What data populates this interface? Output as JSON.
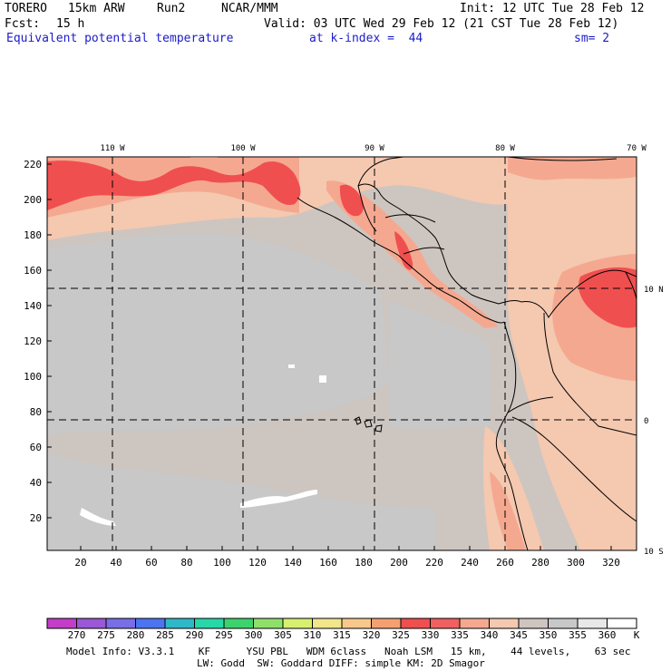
{
  "header": {
    "model": "TORERO",
    "resolution": "15km ARW",
    "run": "Run2",
    "org": "NCAR/MMM",
    "init": "Init: 12 UTC Tue 28 Feb 12",
    "fcst_label": "Fcst:",
    "fcst_value": "15 h",
    "valid": "Valid: 03 UTC Wed 29 Feb 12 (21 CST Tue 28 Feb 12)",
    "field": "Equivalent potential temperature",
    "level": "at k-index =  44",
    "smoothing": "sm= 2"
  },
  "map": {
    "lon_labels": [
      "110 W",
      "100 W",
      "90 W",
      "80 W",
      "70 W"
    ],
    "lat_labels": [
      "10 N",
      "0",
      "10 S"
    ],
    "y_ticks": [
      "220",
      "200",
      "180",
      "160",
      "140",
      "120",
      "100",
      "80",
      "60",
      "40",
      "20"
    ],
    "x_ticks": [
      "20",
      "40",
      "60",
      "80",
      "100",
      "120",
      "140",
      "160",
      "180",
      "200",
      "220",
      "240",
      "260",
      "280",
      "300",
      "320"
    ]
  },
  "colorbar": {
    "levels": [
      "270",
      "275",
      "280",
      "285",
      "290",
      "295",
      "300",
      "305",
      "310",
      "315",
      "320",
      "325",
      "330",
      "335",
      "340",
      "345",
      "350",
      "355",
      "360"
    ],
    "unit": "K",
    "colors": [
      "#c23ec8",
      "#9b57d6",
      "#7a6ee6",
      "#4d74f0",
      "#2fb8c8",
      "#27d7a8",
      "#3cd26e",
      "#8fe06a",
      "#d7f070",
      "#f0e68a",
      "#f7c88c",
      "#f5a070",
      "#f04f4f",
      "#f06060",
      "#f5a890",
      "#f5c8b0",
      "#cdc5c0",
      "#c8c8c8",
      "#e8e8e8",
      "#ffffff"
    ]
  },
  "footer": {
    "line1": "Model Info: V3.3.1    KF      YSU PBL   WDM 6class   Noah LSM   15 km,    44 levels,    63 sec",
    "line2": "LW: Godd  SW: Goddard DIFF: simple KM: 2D Smagor"
  }
}
